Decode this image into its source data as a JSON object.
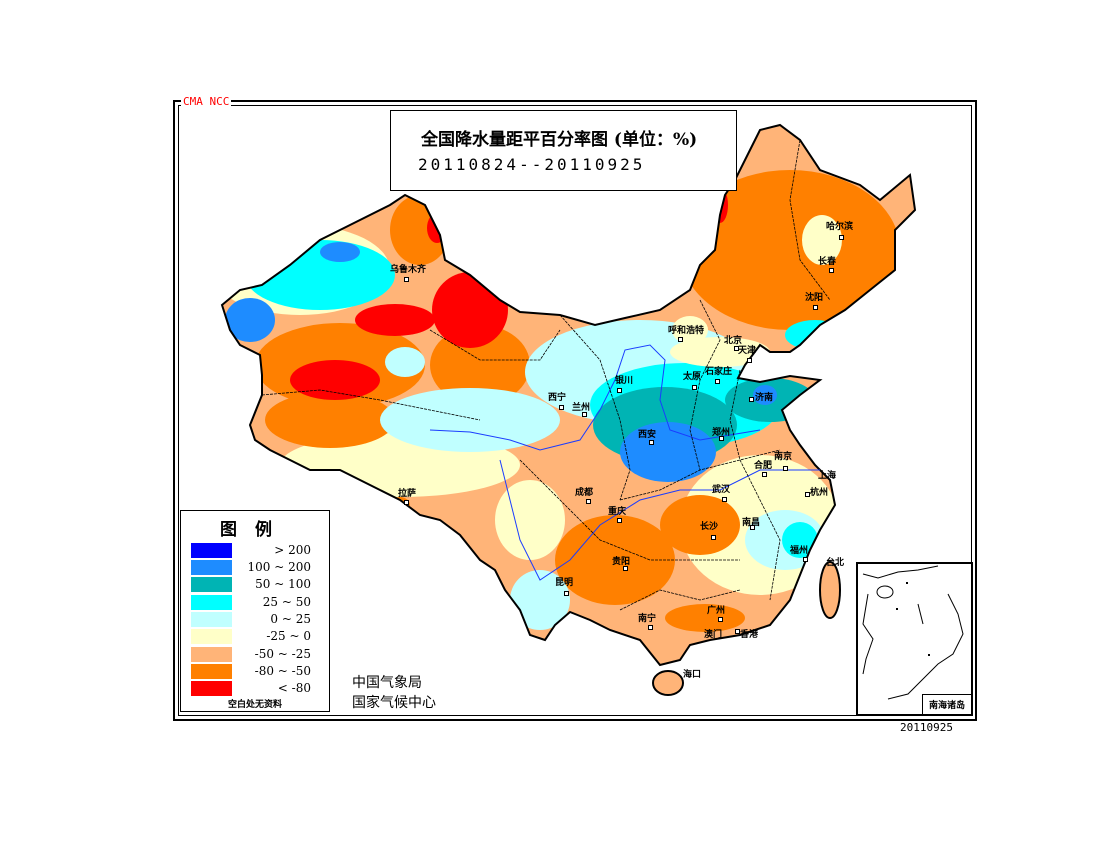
{
  "header": {
    "agency_tag": "CMA NCC",
    "title": "全国降水量距平百分率图 (单位：%)",
    "date_range": "20110824--20110925"
  },
  "legend": {
    "title": "图例",
    "items": [
      {
        "label": "> 200",
        "color": "#0000ff"
      },
      {
        "label": "100 ~ 200",
        "color": "#1e8cff"
      },
      {
        "label": "50 ~ 100",
        "color": "#00b4b4"
      },
      {
        "label": "25 ~ 50",
        "color": "#00ffff"
      },
      {
        "label": "0 ~ 25",
        "color": "#c0ffff"
      },
      {
        "label": "-25 ~ 0",
        "color": "#ffffc8"
      },
      {
        "label": "-50 ~ -25",
        "color": "#ffb478"
      },
      {
        "label": "-80 ~ -50",
        "color": "#ff8000"
      },
      {
        "label": "< -80",
        "color": "#ff0000"
      }
    ],
    "note": "空白处无资料"
  },
  "organizations": [
    "中国气象局",
    "国家气候中心"
  ],
  "inset_label": "南海诸岛",
  "date_stamp": "20110925",
  "cities": [
    "乌鲁木齐",
    "哈尔滨",
    "长春",
    "沈阳",
    "呼和浩特",
    "北京",
    "天津",
    "太原",
    "石家庄",
    "银川",
    "西宁",
    "兰州",
    "济南",
    "郑州",
    "西安",
    "合肥",
    "南京",
    "上海",
    "杭州",
    "武汉",
    "成都",
    "重庆",
    "长沙",
    "南昌",
    "福州",
    "台北",
    "贵阳",
    "昆明",
    "南宁",
    "广州",
    "澳门",
    "香港",
    "海口",
    "拉萨"
  ]
}
